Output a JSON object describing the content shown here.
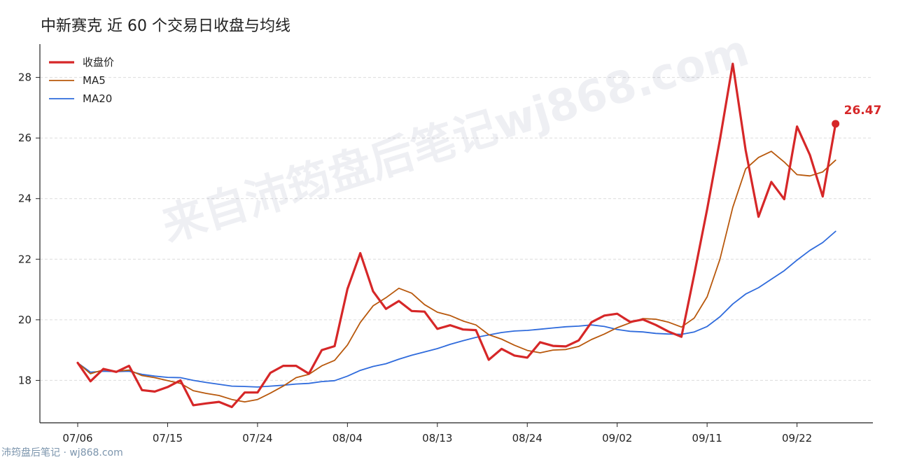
{
  "chart_data": {
    "type": "line",
    "title": "中新赛克 近 60 个交易日收盘与均线",
    "xlabel": "",
    "ylabel": "",
    "ylim": [
      16.6,
      29.1
    ],
    "yticks": [
      18,
      20,
      22,
      24,
      26,
      28
    ],
    "x_tick_labels": [
      "07/06",
      "07/15",
      "07/24",
      "08/04",
      "08/13",
      "08/24",
      "09/02",
      "09/11",
      "09/22"
    ],
    "x_tick_index": [
      0,
      7,
      14,
      21,
      28,
      35,
      42,
      49,
      56
    ],
    "grid": true,
    "legend_position": "top-left",
    "colors": {
      "close": "#d62728",
      "ma5": "#b8580c",
      "ma20": "#2f6bdc"
    },
    "series": [
      {
        "name": "收盘价",
        "key": "close",
        "values": [
          18.58,
          17.97,
          18.38,
          18.28,
          18.48,
          17.68,
          17.63,
          17.78,
          18.0,
          17.18,
          17.24,
          17.29,
          17.12,
          17.6,
          17.6,
          18.25,
          18.48,
          18.48,
          18.22,
          19.0,
          19.13,
          21.02,
          22.2,
          20.94,
          20.36,
          20.62,
          20.29,
          20.27,
          19.7,
          19.82,
          19.68,
          19.66,
          18.68,
          19.04,
          18.82,
          18.75,
          19.26,
          19.14,
          19.12,
          19.32,
          19.92,
          20.14,
          20.2,
          19.93,
          20.01,
          19.83,
          19.61,
          19.44,
          21.5,
          23.65,
          25.95,
          28.45,
          25.6,
          23.4,
          24.55,
          23.98,
          26.38,
          25.44,
          24.07,
          26.47
        ]
      },
      {
        "name": "MA5",
        "key": "ma5",
        "values": [
          18.58,
          18.22,
          18.35,
          18.3,
          18.34,
          18.16,
          18.09,
          17.99,
          17.9,
          17.66,
          17.57,
          17.5,
          17.37,
          17.29,
          17.37,
          17.58,
          17.81,
          18.09,
          18.2,
          18.48,
          18.66,
          19.17,
          19.91,
          20.46,
          20.73,
          21.04,
          20.88,
          20.5,
          20.25,
          20.14,
          19.96,
          19.83,
          19.51,
          19.36,
          19.16,
          18.99,
          18.91,
          19.0,
          19.02,
          19.12,
          19.35,
          19.53,
          19.74,
          19.9,
          20.04,
          20.02,
          19.92,
          19.76,
          20.06,
          20.76,
          22.0,
          23.71,
          24.98,
          25.36,
          25.56,
          25.21,
          24.79,
          24.75,
          24.88,
          25.27
        ]
      },
      {
        "name": "MA20",
        "key": "ma20",
        "values": [
          18.58,
          18.27,
          18.3,
          18.29,
          18.3,
          18.2,
          18.14,
          18.1,
          18.09,
          18.0,
          17.93,
          17.87,
          17.81,
          17.8,
          17.78,
          17.81,
          17.84,
          17.88,
          17.9,
          17.96,
          17.99,
          18.14,
          18.33,
          18.46,
          18.55,
          18.7,
          18.83,
          18.94,
          19.05,
          19.19,
          19.31,
          19.42,
          19.5,
          19.58,
          19.63,
          19.65,
          19.69,
          19.73,
          19.77,
          19.79,
          19.83,
          19.78,
          19.68,
          19.62,
          19.6,
          19.55,
          19.53,
          19.52,
          19.6,
          19.78,
          20.1,
          20.52,
          20.85,
          21.06,
          21.34,
          21.62,
          21.97,
          22.29,
          22.55,
          22.92
        ]
      }
    ],
    "last_value_label": "26.47"
  },
  "watermark": "来自沛筠盘后笔记wj868.com",
  "footer": "沛筠盘后笔记 · wj868.com"
}
